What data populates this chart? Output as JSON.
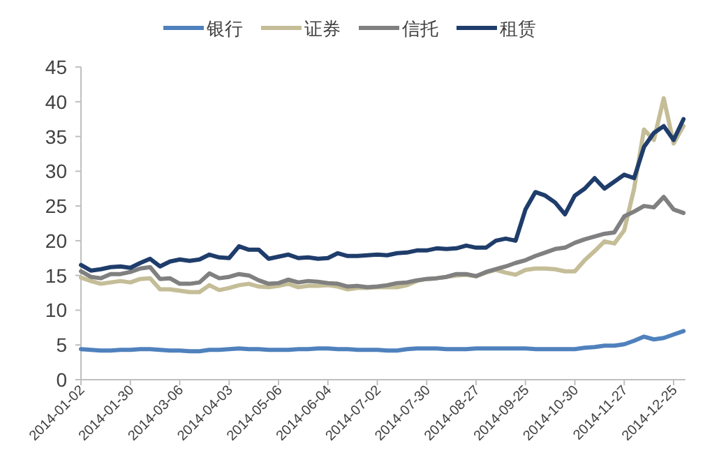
{
  "chart_data": {
    "type": "line",
    "categories": [
      "2014-01-02",
      null,
      null,
      null,
      null,
      "2014-01-30",
      null,
      null,
      null,
      null,
      "2014-03-06",
      null,
      null,
      null,
      null,
      "2014-04-03",
      null,
      null,
      null,
      null,
      "2014-05-06",
      null,
      null,
      null,
      null,
      "2014-06-04",
      null,
      null,
      null,
      null,
      "2014-07-02",
      null,
      null,
      null,
      null,
      "2014-07-30",
      null,
      null,
      null,
      null,
      "2014-08-27",
      null,
      null,
      null,
      null,
      "2014-09-25",
      null,
      null,
      null,
      null,
      "2014-10-30",
      null,
      null,
      null,
      null,
      "2014-11-27",
      null,
      null,
      null,
      null,
      "2014-12-25",
      null
    ],
    "series": [
      {
        "name": "银行",
        "color": "#4f81bd",
        "values": [
          4.4,
          4.3,
          4.2,
          4.2,
          4.3,
          4.3,
          4.4,
          4.4,
          4.3,
          4.2,
          4.2,
          4.1,
          4.1,
          4.3,
          4.3,
          4.4,
          4.5,
          4.4,
          4.4,
          4.3,
          4.3,
          4.3,
          4.4,
          4.4,
          4.5,
          4.5,
          4.4,
          4.4,
          4.3,
          4.3,
          4.3,
          4.2,
          4.2,
          4.4,
          4.5,
          4.5,
          4.5,
          4.4,
          4.4,
          4.4,
          4.5,
          4.5,
          4.5,
          4.5,
          4.5,
          4.5,
          4.4,
          4.4,
          4.4,
          4.4,
          4.4,
          4.6,
          4.7,
          4.9,
          4.9,
          5.1,
          5.6,
          6.2,
          5.8,
          6.0,
          6.5,
          7.0
        ]
      },
      {
        "name": "证券",
        "color": "#c4bd97",
        "values": [
          14.7,
          14.2,
          13.8,
          14.0,
          14.2,
          14.0,
          14.5,
          14.6,
          13.0,
          13.0,
          12.8,
          12.6,
          12.6,
          13.6,
          12.9,
          13.2,
          13.6,
          13.8,
          13.4,
          13.3,
          13.5,
          13.8,
          13.3,
          13.5,
          13.5,
          13.6,
          13.4,
          13.0,
          13.2,
          13.2,
          13.3,
          13.3,
          13.3,
          13.6,
          14.2,
          14.5,
          14.6,
          14.8,
          15.0,
          15.1,
          14.9,
          15.4,
          15.8,
          15.4,
          15.1,
          15.8,
          16.0,
          16.0,
          15.9,
          15.6,
          15.6,
          17.2,
          18.5,
          19.9,
          19.6,
          21.5,
          27.5,
          36.0,
          34.5,
          40.5,
          34.0,
          36.5
        ]
      },
      {
        "name": "信托",
        "color": "#808080",
        "values": [
          15.6,
          14.8,
          14.6,
          15.2,
          15.2,
          15.5,
          16.0,
          16.2,
          14.5,
          14.6,
          13.8,
          13.8,
          14.0,
          15.3,
          14.6,
          14.8,
          15.2,
          15.0,
          14.3,
          13.8,
          13.9,
          14.4,
          14.0,
          14.2,
          14.1,
          13.9,
          13.8,
          13.4,
          13.5,
          13.3,
          13.4,
          13.6,
          13.9,
          14.0,
          14.3,
          14.5,
          14.6,
          14.8,
          15.2,
          15.2,
          14.9,
          15.5,
          15.9,
          16.3,
          16.8,
          17.2,
          17.8,
          18.3,
          18.8,
          19.0,
          19.7,
          20.2,
          20.6,
          21.0,
          21.2,
          23.5,
          24.2,
          25.0,
          24.8,
          26.3,
          24.5,
          24.0
        ]
      },
      {
        "name": "租赁",
        "color": "#1f3d6b",
        "values": [
          16.5,
          15.7,
          15.9,
          16.2,
          16.3,
          16.1,
          16.8,
          17.4,
          16.3,
          17.0,
          17.3,
          17.1,
          17.3,
          18.0,
          17.6,
          17.5,
          19.2,
          18.7,
          18.7,
          17.4,
          17.7,
          18.0,
          17.5,
          17.6,
          17.4,
          17.5,
          18.2,
          17.8,
          17.8,
          17.9,
          18.0,
          17.9,
          18.2,
          18.3,
          18.6,
          18.6,
          18.9,
          18.8,
          18.9,
          19.3,
          19.0,
          19.0,
          20.0,
          20.3,
          20.0,
          24.5,
          27.0,
          26.5,
          25.5,
          23.8,
          26.5,
          27.5,
          29.0,
          27.5,
          28.5,
          29.5,
          29.0,
          33.5,
          35.5,
          36.5,
          34.5,
          37.5
        ]
      }
    ],
    "ylim": [
      0,
      45
    ],
    "yticks": [
      0,
      5,
      10,
      15,
      20,
      25,
      30,
      35,
      40,
      45
    ],
    "grid": false,
    "legend": "top"
  }
}
